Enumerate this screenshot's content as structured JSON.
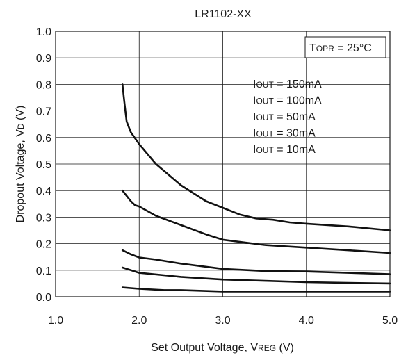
{
  "chart_data": {
    "type": "line",
    "title": "LR1102-XX",
    "xlabel": {
      "main": "Set Output Voltage, V",
      "sub": "REG",
      "unit": " (V)"
    },
    "ylabel": {
      "main": "Dropout Voltage, V",
      "sub": "D",
      "unit": " (V)"
    },
    "xlim": [
      1.0,
      5.0
    ],
    "ylim": [
      0.0,
      1.0
    ],
    "x_ticks": [
      "1.0",
      "2.0",
      "3.0",
      "4.0",
      "5.0"
    ],
    "y_ticks": [
      "0.0",
      "0.1",
      "0.2",
      "0.3",
      "0.4",
      "0.5",
      "0.6",
      "0.7",
      "0.8",
      "0.9",
      "1.0"
    ],
    "x_tick_values": [
      1.0,
      2.0,
      3.0,
      4.0,
      5.0
    ],
    "y_tick_values": [
      0.0,
      0.1,
      0.2,
      0.3,
      0.4,
      0.5,
      0.6,
      0.7,
      0.8,
      0.9,
      1.0
    ],
    "grid": true,
    "condition": {
      "prefix": "T",
      "sub": "OPR",
      "suffix": " = 25°C"
    },
    "series_labels": [
      {
        "prefix": "I",
        "sub": "OUT",
        "suffix": " = 150mA"
      },
      {
        "prefix": "I",
        "sub": "OUT",
        "suffix": " = 100mA"
      },
      {
        "prefix": "I",
        "sub": "OUT",
        "suffix": " = 50mA"
      },
      {
        "prefix": "I",
        "sub": "OUT",
        "suffix": " = 30mA"
      },
      {
        "prefix": "I",
        "sub": "OUT",
        "suffix": " = 10mA"
      }
    ],
    "series": [
      {
        "name": "IOUT = 150mA",
        "points": [
          [
            1.8,
            0.8
          ],
          [
            1.82,
            0.74
          ],
          [
            1.85,
            0.66
          ],
          [
            1.9,
            0.62
          ],
          [
            2.0,
            0.575
          ],
          [
            2.2,
            0.5
          ],
          [
            2.5,
            0.42
          ],
          [
            2.8,
            0.36
          ],
          [
            3.0,
            0.335
          ],
          [
            3.2,
            0.31
          ],
          [
            3.4,
            0.295
          ],
          [
            3.6,
            0.29
          ],
          [
            3.8,
            0.28
          ],
          [
            4.0,
            0.275
          ],
          [
            4.5,
            0.265
          ],
          [
            5.0,
            0.25
          ]
        ]
      },
      {
        "name": "IOUT = 100mA",
        "points": [
          [
            1.8,
            0.4
          ],
          [
            1.85,
            0.38
          ],
          [
            1.9,
            0.36
          ],
          [
            1.95,
            0.345
          ],
          [
            2.0,
            0.34
          ],
          [
            2.2,
            0.305
          ],
          [
            2.5,
            0.27
          ],
          [
            2.8,
            0.235
          ],
          [
            3.0,
            0.215
          ],
          [
            3.5,
            0.195
          ],
          [
            4.0,
            0.185
          ],
          [
            4.5,
            0.175
          ],
          [
            5.0,
            0.165
          ]
        ]
      },
      {
        "name": "IOUT = 50mA",
        "points": [
          [
            1.8,
            0.175
          ],
          [
            1.9,
            0.16
          ],
          [
            2.0,
            0.148
          ],
          [
            2.2,
            0.14
          ],
          [
            2.5,
            0.125
          ],
          [
            3.0,
            0.105
          ],
          [
            3.5,
            0.097
          ],
          [
            4.0,
            0.095
          ],
          [
            4.5,
            0.09
          ],
          [
            5.0,
            0.085
          ]
        ]
      },
      {
        "name": "IOUT = 30mA",
        "points": [
          [
            1.8,
            0.11
          ],
          [
            1.9,
            0.1
          ],
          [
            2.0,
            0.09
          ],
          [
            2.5,
            0.075
          ],
          [
            3.0,
            0.065
          ],
          [
            3.5,
            0.06
          ],
          [
            4.0,
            0.055
          ],
          [
            4.5,
            0.052
          ],
          [
            5.0,
            0.05
          ]
        ]
      },
      {
        "name": "IOUT = 10mA",
        "points": [
          [
            1.8,
            0.035
          ],
          [
            2.0,
            0.03
          ],
          [
            2.3,
            0.025
          ],
          [
            2.5,
            0.025
          ],
          [
            3.0,
            0.02
          ],
          [
            4.0,
            0.02
          ],
          [
            5.0,
            0.02
          ]
        ]
      }
    ]
  }
}
